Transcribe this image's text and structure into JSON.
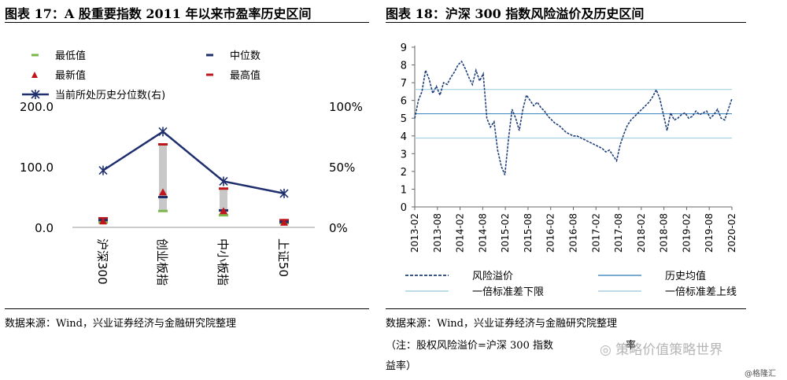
{
  "left": {
    "title": "图表 17：A 股重要指数 2011 年以来市盈率历史区间",
    "source": "数据来源：Wind，兴业证券经济与金融研究院整理"
  },
  "right": {
    "title": "图表 18：沪深 300 指数风险溢价及历史区间",
    "source": "数据来源：Wind，兴业证券经济与金融研究院整理",
    "note_line1": "（注：股权风险溢价=沪深 300 指数",
    "note_line1b": "率",
    "note_line2": "益率）"
  },
  "watermark": {
    "text": "策略价值",
    "text2": "策略世界",
    "credit": "@格隆汇"
  },
  "chart_data": [
    {
      "type": "bar",
      "categories": [
        "沪深300",
        "创业板指",
        "中小板指",
        "上证50"
      ],
      "series": [
        {
          "name": "最低值",
          "values": [
            8,
            27,
            20,
            7
          ],
          "color": "#7ab648",
          "marker": "dash"
        },
        {
          "name": "中位数",
          "values": [
            12,
            50,
            28,
            9
          ],
          "color": "#1f2f6e",
          "marker": "dash"
        },
        {
          "name": "最新值",
          "values": [
            10,
            58,
            27,
            8
          ],
          "color": "#c0161b",
          "marker": "triangle"
        },
        {
          "name": "最高值",
          "values": [
            15,
            137,
            64,
            12
          ],
          "color": "#c0161b",
          "marker": "dash"
        },
        {
          "name": "当前所处历史分位数(右)",
          "values": [
            47,
            79,
            38,
            28
          ],
          "color": "#1f2f6e",
          "marker": "star-line",
          "axis": "right"
        }
      ],
      "range_bar_color": "#c8c8c8",
      "left_ticks": [
        "0.0",
        "100.0",
        "200.0"
      ],
      "left_ylim": [
        0,
        200
      ],
      "right_ticks": [
        "0%",
        "50%",
        "100%"
      ],
      "right_ylim": [
        0,
        100
      ]
    },
    {
      "type": "line",
      "x_ticks": [
        "2013-02",
        "2013-08",
        "2014-02",
        "2014-08",
        "2015-02",
        "2015-08",
        "2016-02",
        "2016-08",
        "2017-02",
        "2017-08",
        "2018-02",
        "2018-08",
        "2019-02",
        "2019-08",
        "2020-02"
      ],
      "y_ticks": [
        "0",
        "1",
        "2",
        "3",
        "4",
        "5",
        "6",
        "7",
        "8",
        "9"
      ],
      "ylim": [
        0,
        9
      ],
      "x": [
        0,
        1,
        2,
        3,
        4,
        5,
        6,
        7,
        8,
        9,
        10,
        11,
        12,
        13,
        14,
        15,
        16,
        17,
        18,
        19,
        20,
        21,
        22,
        23,
        24,
        25,
        26,
        27,
        28,
        29,
        30,
        31,
        32,
        33,
        34,
        35,
        36,
        37,
        38,
        39,
        40,
        41,
        42,
        43,
        44,
        45,
        46,
        47,
        48,
        49,
        50,
        51,
        52,
        53,
        54,
        55,
        56,
        57,
        58,
        59,
        60,
        61,
        62,
        63,
        64,
        65,
        66,
        67,
        68,
        69,
        70,
        71,
        72,
        73,
        74,
        75,
        76,
        77,
        78,
        79,
        80,
        81,
        82,
        83,
        84,
        85,
        86,
        87,
        88
      ],
      "series": [
        {
          "name": "风险溢价",
          "style": "dashed",
          "color": "#1f3f7a",
          "values": [
            5.0,
            6.0,
            6.5,
            7.7,
            7.2,
            6.4,
            6.8,
            6.3,
            7.0,
            6.9,
            7.3,
            7.6,
            8.0,
            8.2,
            7.8,
            7.3,
            6.9,
            7.7,
            7.1,
            7.5,
            5.0,
            4.5,
            4.8,
            3.2,
            2.3,
            1.8,
            3.8,
            5.5,
            5.0,
            4.3,
            5.5,
            6.3,
            6.0,
            5.7,
            5.9,
            5.6,
            5.4,
            5.1,
            4.9,
            4.7,
            4.6,
            4.4,
            4.2,
            4.1,
            4.0,
            4.0,
            3.9,
            3.8,
            3.7,
            3.6,
            3.5,
            3.4,
            3.3,
            3.1,
            3.2,
            2.9,
            2.6,
            3.5,
            4.1,
            4.6,
            4.9,
            5.1,
            5.3,
            5.5,
            5.7,
            5.9,
            6.2,
            6.6,
            6.1,
            5.2,
            4.3,
            5.3,
            4.9,
            5.0,
            5.2,
            5.3,
            5.0,
            5.1,
            5.4,
            5.2,
            5.3,
            5.4,
            5.0,
            5.2,
            5.5,
            5.0,
            4.9,
            5.5,
            6.1
          ]
        },
        {
          "name": "历史均值",
          "style": "solid",
          "color": "#4a8fc4",
          "constant": 5.25
        },
        {
          "name": "一倍标准差下限",
          "style": "solid",
          "color": "#a6d0e4",
          "constant": 3.88
        },
        {
          "name": "一倍标准差上线",
          "style": "solid",
          "color": "#a6d0e4",
          "constant": 6.62
        }
      ]
    }
  ]
}
